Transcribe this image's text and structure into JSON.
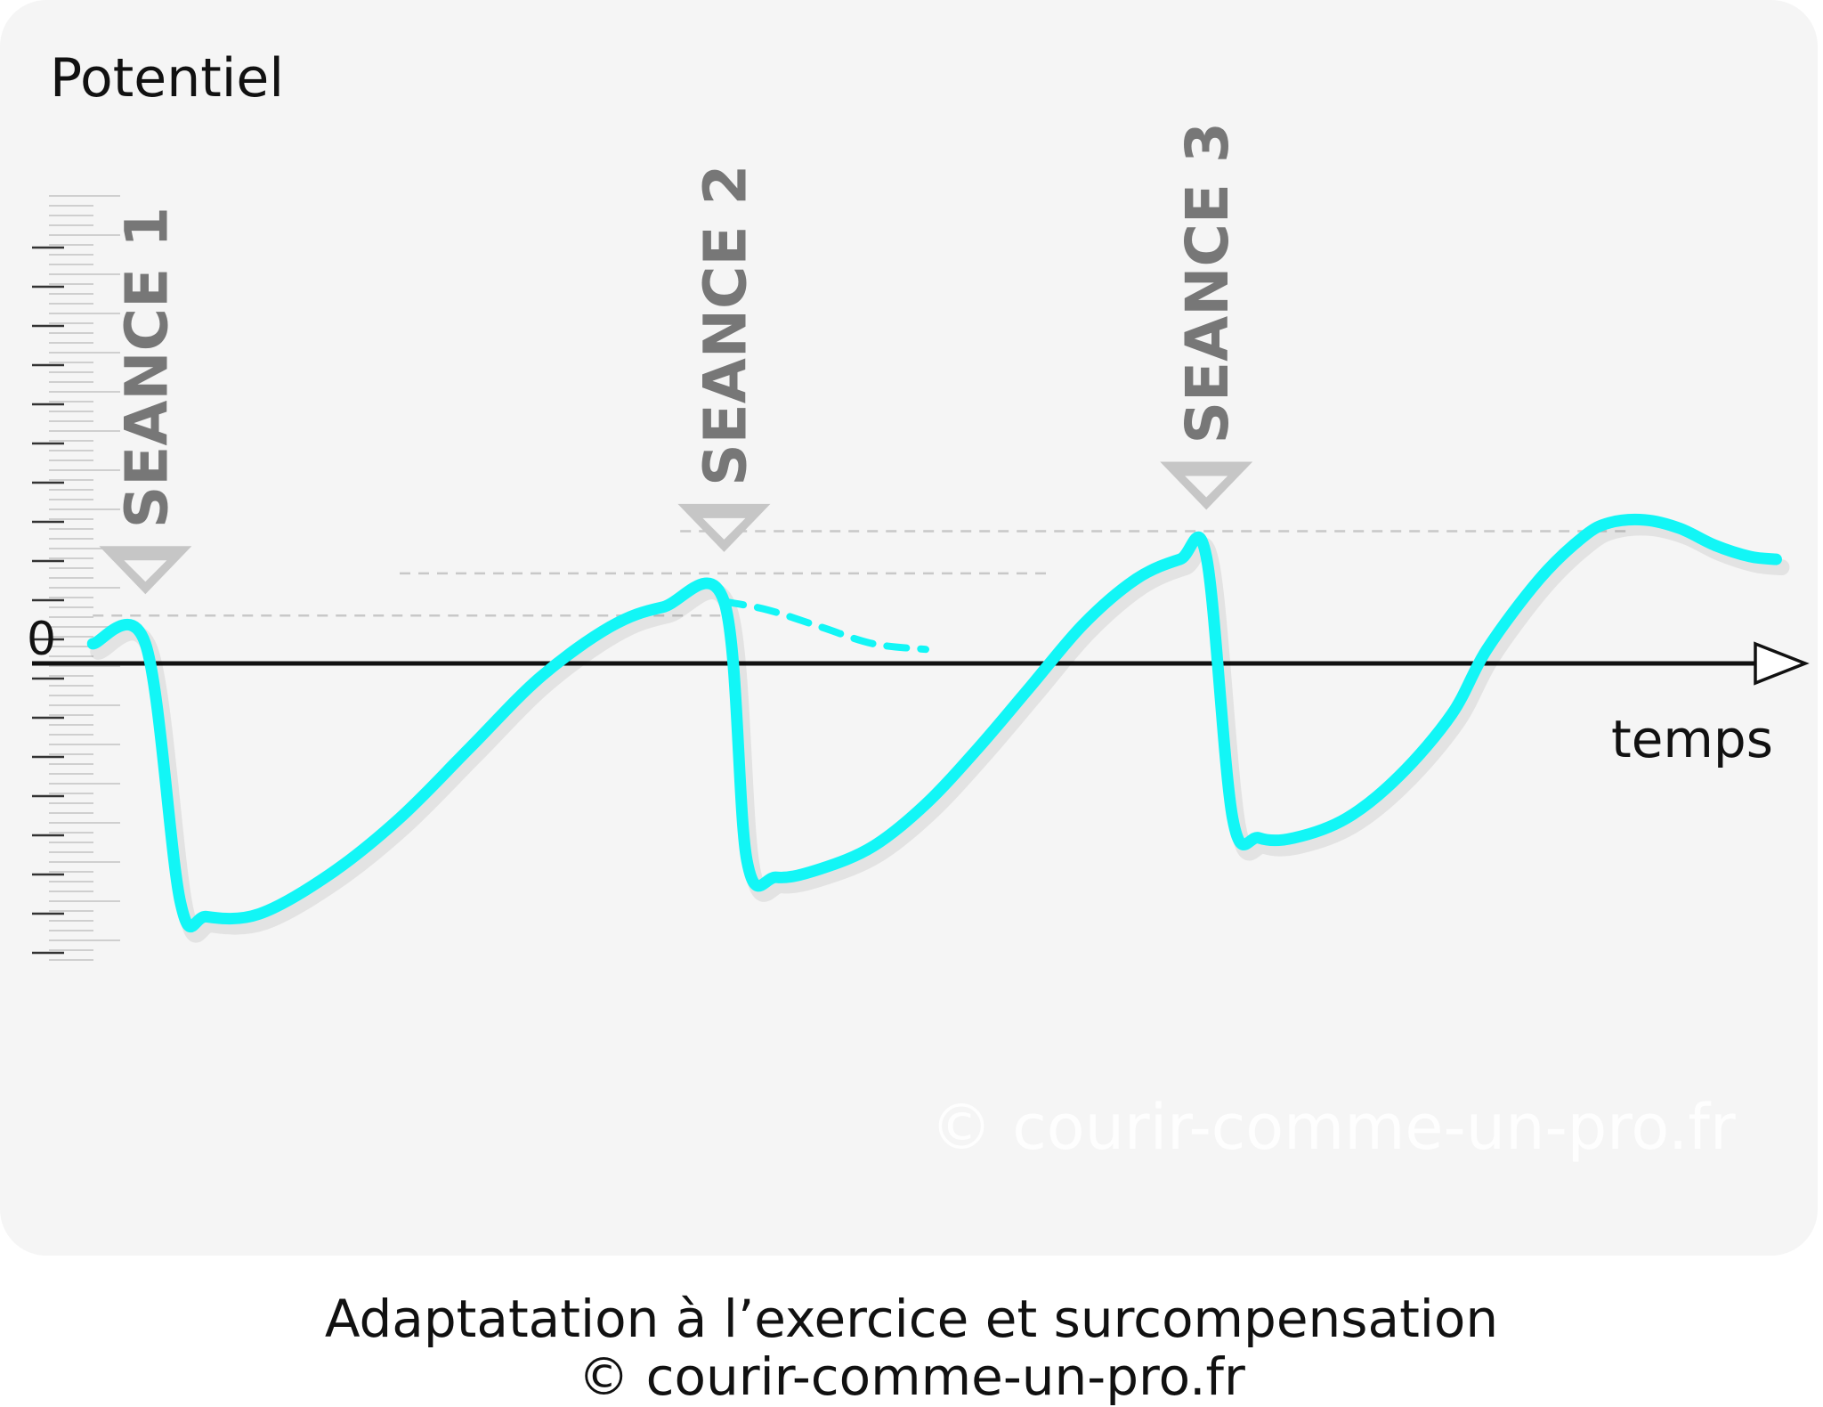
{
  "chart_data": {
    "type": "line",
    "ylabel": "Potentiel",
    "xlabel": "temps",
    "zero_label": "0",
    "watermark": "© courir-comme-un-pro.fr",
    "x_range": [
      0,
      100
    ],
    "y_range": [
      -100,
      100
    ],
    "sessions": [
      {
        "label": "SEANCE 1",
        "x": 5.5,
        "baseline": 17
      },
      {
        "label": "SEANCE 2",
        "x": 38.5,
        "baseline": 32
      },
      {
        "label": "SEANCE 3",
        "x": 66,
        "baseline": 47
      }
    ],
    "series": [
      {
        "style": "solid",
        "points": [
          [
            2.5,
            7
          ],
          [
            5.5,
            7
          ],
          [
            7.5,
            -85
          ],
          [
            9,
            -90
          ],
          [
            12,
            -89
          ],
          [
            16,
            -75
          ],
          [
            20,
            -55
          ],
          [
            24,
            -30
          ],
          [
            28,
            -5
          ],
          [
            32,
            13
          ],
          [
            35,
            20
          ],
          [
            38.5,
            22
          ],
          [
            39.8,
            -70
          ],
          [
            41.5,
            -76
          ],
          [
            44,
            -73
          ],
          [
            47,
            -65
          ],
          [
            50,
            -50
          ],
          [
            53,
            -30
          ],
          [
            56,
            -8
          ],
          [
            59,
            14
          ],
          [
            62,
            30
          ],
          [
            64.5,
            37
          ],
          [
            66,
            38
          ],
          [
            67.5,
            -55
          ],
          [
            69,
            -62
          ],
          [
            71,
            -62
          ],
          [
            74,
            -55
          ],
          [
            77,
            -40
          ],
          [
            80,
            -18
          ],
          [
            82,
            5
          ],
          [
            85,
            30
          ],
          [
            87.5,
            45
          ],
          [
            89,
            50
          ],
          [
            91,
            51
          ],
          [
            93,
            48
          ],
          [
            95,
            42
          ],
          [
            97,
            38
          ],
          [
            98.5,
            37
          ]
        ]
      },
      {
        "style": "dashed",
        "points": [
          [
            38.5,
            22
          ],
          [
            41,
            19
          ],
          [
            44,
            13
          ],
          [
            47,
            7
          ],
          [
            50,
            5
          ]
        ]
      }
    ]
  },
  "caption": {
    "line1": "Adaptatation à l’exercice et surcompensation",
    "line2": "© courir-comme-un-pro.fr"
  }
}
